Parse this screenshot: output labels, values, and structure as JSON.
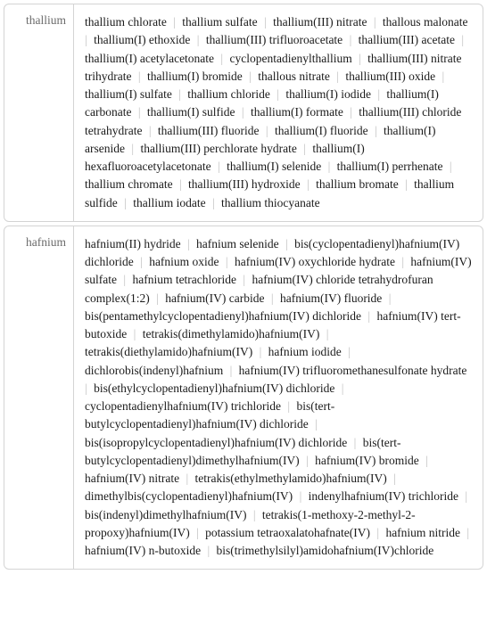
{
  "rows": [
    {
      "label": "thallium",
      "compounds": [
        "thallium chlorate",
        "thallium sulfate",
        "thallium(III) nitrate",
        "thallous malonate",
        "thallium(I) ethoxide",
        "thallium(III) trifluoroacetate",
        "thallium(III) acetate",
        "thallium(I) acetylacetonate",
        "cyclopentadienylthallium",
        "thallium(III) nitrate trihydrate",
        "thallium(I) bromide",
        "thallous nitrate",
        "thallium(III) oxide",
        "thallium(I) sulfate",
        "thallium chloride",
        "thallium(I) iodide",
        "thallium(I) carbonate",
        "thallium(I) sulfide",
        "thallium(I) formate",
        "thallium(III) chloride tetrahydrate",
        "thallium(III) fluoride",
        "thallium(I) fluoride",
        "thallium(I) arsenide",
        "thallium(III) perchlorate hydrate",
        "thallium(I) hexafluoroacetylacetonate",
        "thallium(I) selenide",
        "thallium(I) perrhenate",
        "thallium chromate",
        "thallium(III) hydroxide",
        "thallium bromate",
        "thallium sulfide",
        "thallium iodate",
        "thallium thiocyanate"
      ]
    },
    {
      "label": "hafnium",
      "compounds": [
        "hafnium(II) hydride",
        "hafnium selenide",
        "bis(cyclopentadienyl)hafnium(IV) dichloride",
        "hafnium oxide",
        "hafnium(IV) oxychloride hydrate",
        "hafnium(IV) sulfate",
        "hafnium tetrachloride",
        "hafnium(IV) chloride tetrahydrofuran complex(1:2)",
        "hafnium(IV) carbide",
        "hafnium(IV) fluoride",
        "bis(pentamethylcyclopentadienyl)hafnium(IV) dichloride",
        "hafnium(IV) tert-butoxide",
        "tetrakis(dimethylamido)hafnium(IV)",
        "tetrakis(diethylamido)hafnium(IV)",
        "hafnium iodide",
        "dichlorobis(indenyl)hafnium",
        "hafnium(IV) trifluoromethanesulfonate hydrate",
        "bis(ethylcyclopentadienyl)hafnium(IV) dichloride",
        "cyclopentadienylhafnium(IV) trichloride",
        "bis(tert-butylcyclopentadienyl)hafnium(IV) dichloride",
        "bis(isopropylcyclopentadienyl)hafnium(IV) dichloride",
        "bis(tert-butylcyclopentadienyl)dimethylhafnium(IV)",
        "hafnium(IV) bromide",
        "hafnium(IV) nitrate",
        "tetrakis(ethylmethylamido)hafnium(IV)",
        "dimethylbis(cyclopentadienyl)hafnium(IV)",
        "indenylhafnium(IV) trichloride",
        "bis(indenyl)dimethylhafnium(IV)",
        "tetrakis(1-methoxy-2-methyl-2-propoxy)hafnium(IV)",
        "potassium tetraoxalatohafnate(IV)",
        "hafnium nitride",
        "hafnium(IV) n-butoxide",
        "bis(trimethylsilyl)amidohafnium(IV)chloride"
      ]
    }
  ],
  "separator": "|",
  "colors": {
    "border": "#d4d4d4",
    "label_text": "#6b6b6b",
    "content_text": "#1a1a1a",
    "separator": "#c0c0c0",
    "background": "#ffffff"
  },
  "typography": {
    "font_family": "Georgia, Times New Roman, serif",
    "font_size": 13.5,
    "line_height": 1.5
  },
  "layout": {
    "label_width": 78,
    "border_radius": 6
  }
}
